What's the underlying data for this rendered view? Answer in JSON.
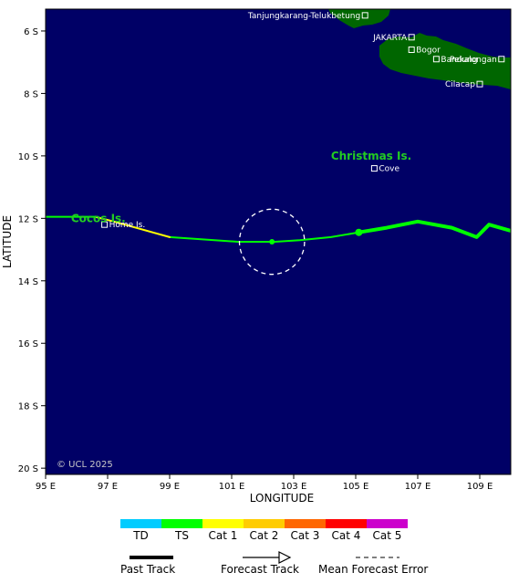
{
  "map": {
    "ocean_color": "#000066",
    "land_color": "#006600",
    "lon_range": [
      95,
      110
    ],
    "lat_range": [
      -20.2,
      -5.3
    ],
    "xlabel": "LONGITUDE",
    "ylabel": "LATITUDE",
    "copyright": "© UCL 2025",
    "lon_ticks": [
      {
        "value": 95,
        "label": "95 E"
      },
      {
        "value": 97,
        "label": "97 E"
      },
      {
        "value": 99,
        "label": "99 E"
      },
      {
        "value": 101,
        "label": "101 E"
      },
      {
        "value": 103,
        "label": "103 E"
      },
      {
        "value": 105,
        "label": "105 E"
      },
      {
        "value": 107,
        "label": "107 E"
      },
      {
        "value": 109,
        "label": "109 E"
      }
    ],
    "lat_ticks": [
      {
        "value": -6,
        "label": "6 S"
      },
      {
        "value": -8,
        "label": "8 S"
      },
      {
        "value": -10,
        "label": "10 S"
      },
      {
        "value": -12,
        "label": "12 S"
      },
      {
        "value": -14,
        "label": "14 S"
      },
      {
        "value": -16,
        "label": "16 S"
      },
      {
        "value": -18,
        "label": "18 S"
      },
      {
        "value": -20,
        "label": "20 S"
      }
    ],
    "cities": [
      {
        "name": "Tanjungkarang-Telukbetung",
        "lon": 105.3,
        "lat": -5.5,
        "label_side": "left"
      },
      {
        "name": "JAKARTA",
        "lon": 106.8,
        "lat": -6.2,
        "label_side": "left"
      },
      {
        "name": "Bogor",
        "lon": 106.8,
        "lat": -6.6,
        "label_side": "right"
      },
      {
        "name": "Pekalongan",
        "lon": 109.7,
        "lat": -6.9,
        "label_side": "left"
      },
      {
        "name": "Bandung",
        "lon": 107.6,
        "lat": -6.9,
        "label_side": "right"
      },
      {
        "name": "Cilacap",
        "lon": 109.0,
        "lat": -7.7,
        "label_side": "left"
      },
      {
        "name": "Cove",
        "lon": 105.6,
        "lat": -10.4,
        "label_side": "right"
      },
      {
        "name": "Home Is.",
        "lon": 96.9,
        "lat": -12.2,
        "label_side": "right"
      }
    ],
    "islands": [
      {
        "name": "Christmas Is.",
        "lon": 105.5,
        "lat": -10.0
      },
      {
        "name": "Cocos Is.",
        "lon": 96.7,
        "lat": -12.0
      }
    ]
  },
  "track": {
    "segments": [
      {
        "category": "TS",
        "style": "past",
        "points": [
          [
            110.0,
            -12.4
          ],
          [
            109.3,
            -12.2
          ],
          [
            108.9,
            -12.6
          ],
          [
            108.1,
            -12.3
          ],
          [
            107.0,
            -12.1
          ],
          [
            106.0,
            -12.3
          ],
          [
            105.1,
            -12.45
          ]
        ]
      },
      {
        "category": "TS",
        "style": "forecast",
        "points": [
          [
            105.1,
            -12.45
          ],
          [
            104.2,
            -12.6
          ],
          [
            103.2,
            -12.7
          ],
          [
            102.4,
            -12.75
          ],
          [
            101.2,
            -12.75
          ],
          [
            99.0,
            -12.6
          ]
        ]
      },
      {
        "category": "Cat 1",
        "style": "forecast",
        "points": [
          [
            99.0,
            -12.6
          ],
          [
            97.2,
            -12.1
          ],
          [
            96.6,
            -11.95
          ]
        ]
      },
      {
        "category": "TS",
        "style": "forecast",
        "points": [
          [
            96.6,
            -11.95
          ],
          [
            95.0,
            -11.95
          ]
        ]
      }
    ],
    "current_position": {
      "lon": 105.1,
      "lat": -12.45
    },
    "forecast_point": {
      "lon": 102.3,
      "lat": -12.75
    },
    "error_circle": {
      "lon": 102.3,
      "lat": -12.75,
      "radius_deg": 1.05
    }
  },
  "legend": {
    "categories": [
      {
        "label": "TD",
        "color": "#00ccff"
      },
      {
        "label": "TS",
        "color": "#00ff00"
      },
      {
        "label": "Cat 1",
        "color": "#ffff00"
      },
      {
        "label": "Cat 2",
        "color": "#ffcc00"
      },
      {
        "label": "Cat 3",
        "color": "#ff6600"
      },
      {
        "label": "Cat 4",
        "color": "#ff0000"
      },
      {
        "label": "Cat 5",
        "color": "#cc00cc"
      }
    ],
    "past_track_label": "Past Track",
    "forecast_track_label": "Forecast Track",
    "error_label": "Mean Forecast Error"
  }
}
